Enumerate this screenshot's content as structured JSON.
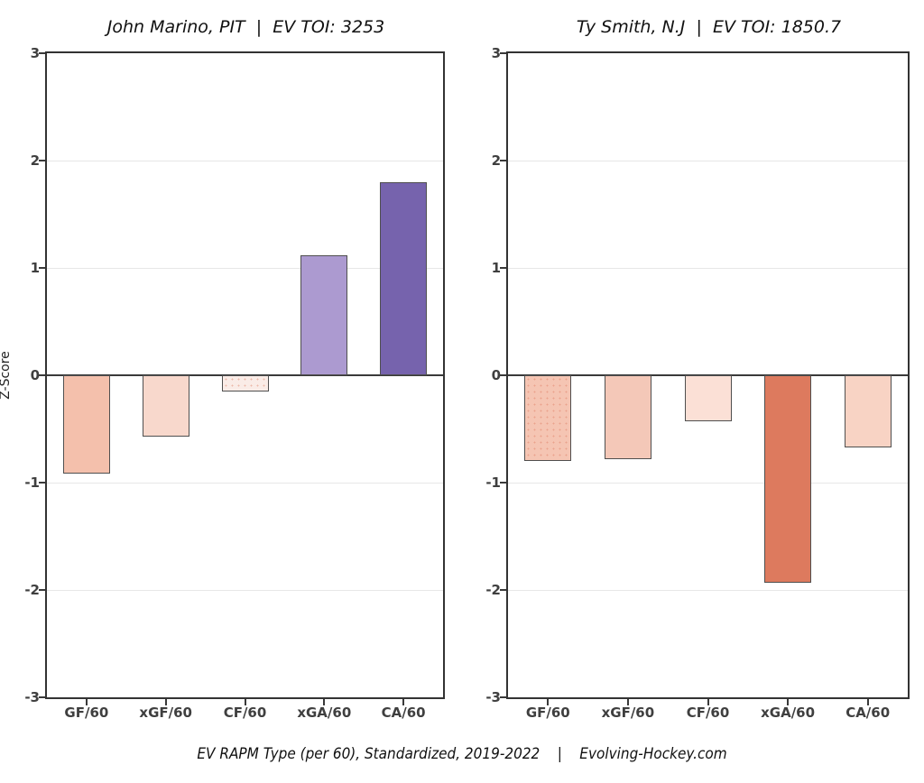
{
  "page": {
    "y_axis_title": "Z-Score",
    "footer": "EV RAPM Type (per 60), Standardized, 2019-2022    |    Evolving-Hockey.com"
  },
  "chart_data": [
    {
      "type": "bar",
      "title": "John Marino, PIT  |  EV TOI: 3253",
      "categories": [
        "GF/60",
        "xGF/60",
        "CF/60",
        "xGA/60",
        "CA/60"
      ],
      "values": [
        -0.92,
        -0.57,
        -0.15,
        1.12,
        1.8
      ],
      "bar_colors": [
        "#f4c0ac",
        "#f8d8cc",
        "#faece7",
        "#ac9ad0",
        "#7663ad"
      ],
      "textured": [
        false,
        false,
        true,
        false,
        false
      ],
      "xlabel": "",
      "ylabel": "Z-Score",
      "ylim": [
        -3,
        3
      ],
      "ytick_step": 1,
      "grid": true,
      "legend": "none"
    },
    {
      "type": "bar",
      "title": "Ty Smith, N.J  |  EV TOI: 1850.7",
      "categories": [
        "GF/60",
        "xGF/60",
        "CF/60",
        "xGA/60",
        "CA/60"
      ],
      "values": [
        -0.8,
        -0.78,
        -0.43,
        -1.93,
        -0.67
      ],
      "bar_colors": [
        "#f5c5b3",
        "#f4c8b8",
        "#fbe0d6",
        "#dd7a5e",
        "#f8d3c4"
      ],
      "textured": [
        true,
        false,
        false,
        false,
        false
      ],
      "xlabel": "",
      "ylabel": "",
      "ylim": [
        -3,
        3
      ],
      "ytick_step": 1,
      "grid": true,
      "legend": "none"
    }
  ]
}
